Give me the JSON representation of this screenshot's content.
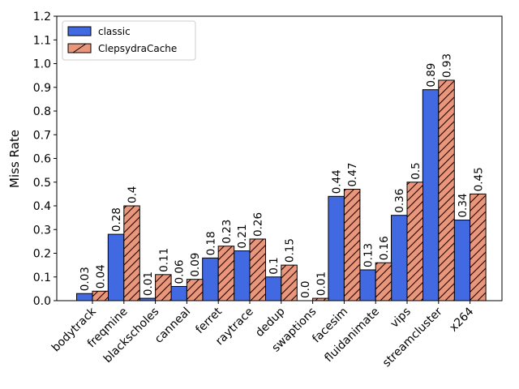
{
  "chart_data": {
    "type": "bar",
    "title": "",
    "xlabel": "",
    "ylabel": "Miss Rate",
    "ylim": [
      0,
      1.2
    ],
    "yticks": [
      "0.0",
      "0.1",
      "0.2",
      "0.3",
      "0.4",
      "0.5",
      "0.6",
      "0.7",
      "0.8",
      "0.9",
      "1.0",
      "1.1",
      "1.2"
    ],
    "grid": false,
    "legend_position": "top-left",
    "categories": [
      "bodytrack",
      "freqmine",
      "blackscholes",
      "canneal",
      "ferret",
      "raytrace",
      "dedup",
      "swaptions",
      "facesim",
      "fluidanimate",
      "vips",
      "streamcluster",
      "x264"
    ],
    "series": [
      {
        "name": "classic",
        "color": "#4169e1",
        "hatch": false,
        "values": [
          0.03,
          0.28,
          0.01,
          0.06,
          0.18,
          0.21,
          0.1,
          0.0,
          0.44,
          0.13,
          0.36,
          0.89,
          0.34
        ],
        "labels": [
          "0.03",
          "0.28",
          "0.01",
          "0.06",
          "0.18",
          "0.21",
          "0.1",
          "0.0",
          "0.44",
          "0.13",
          "0.36",
          "0.89",
          "0.34"
        ]
      },
      {
        "name": "ClepsydraCache",
        "color": "#e9967a",
        "hatch": true,
        "values": [
          0.04,
          0.4,
          0.11,
          0.09,
          0.23,
          0.26,
          0.15,
          0.01,
          0.47,
          0.16,
          0.5,
          0.93,
          0.45
        ],
        "labels": [
          "0.04",
          "0.4",
          "0.11",
          "0.09",
          "0.23",
          "0.26",
          "0.15",
          "0.01",
          "0.47",
          "0.16",
          "0.5",
          "0.93",
          "0.45"
        ]
      }
    ]
  }
}
